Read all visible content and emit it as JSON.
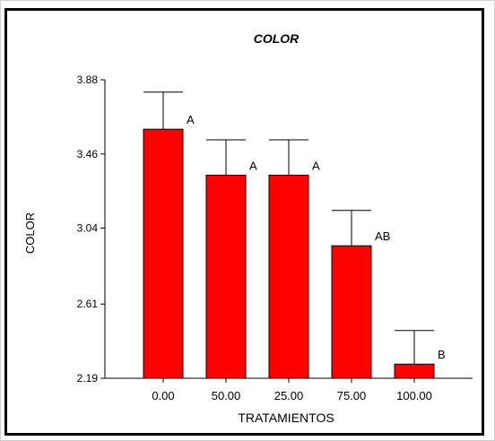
{
  "chart_data": {
    "type": "bar",
    "title": "COLOR",
    "xlabel": "TRATAMIENTOS",
    "ylabel": "COLOR",
    "categories": [
      "0.00",
      "50.00",
      "25.00",
      "75.00",
      "100.00"
    ],
    "values": [
      3.6,
      3.34,
      3.34,
      2.94,
      2.27
    ],
    "error_upper": [
      3.81,
      3.54,
      3.54,
      3.14,
      2.46
    ],
    "group_labels": [
      "A",
      "A",
      "A",
      "AB",
      "B"
    ],
    "yticks": [
      "3.88",
      "3.46",
      "3.04",
      "2.61",
      "2.19"
    ],
    "ylim": [
      2.19,
      3.88
    ],
    "bar_color": "#ff0000",
    "grid": false,
    "legend": "none"
  }
}
